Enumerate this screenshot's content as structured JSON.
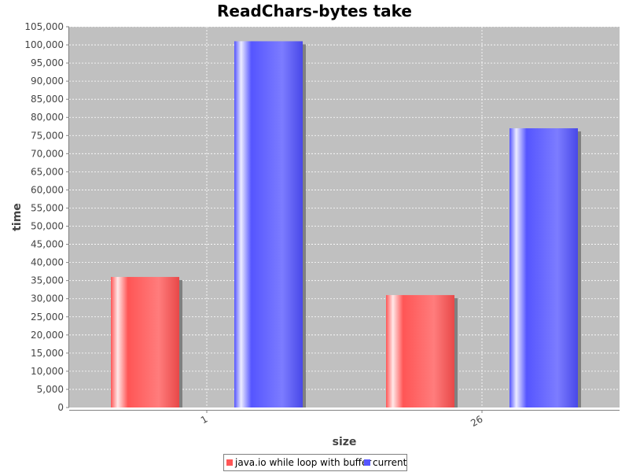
{
  "chart_data": {
    "type": "bar",
    "title": "ReadChars-bytes take",
    "xlabel": "size",
    "ylabel": "time",
    "categories": [
      "1",
      "26"
    ],
    "series": [
      {
        "name": "java.io while loop with buffer",
        "color": "#ff5555",
        "values": [
          36000,
          31000
        ]
      },
      {
        "name": "current",
        "color": "#5555ff",
        "values": [
          101000,
          77000
        ]
      }
    ],
    "ylim": [
      0,
      105000
    ],
    "ytick_step": 5000,
    "grid": true,
    "legend_position": "bottom",
    "plot_background": "#c0c0c0"
  }
}
